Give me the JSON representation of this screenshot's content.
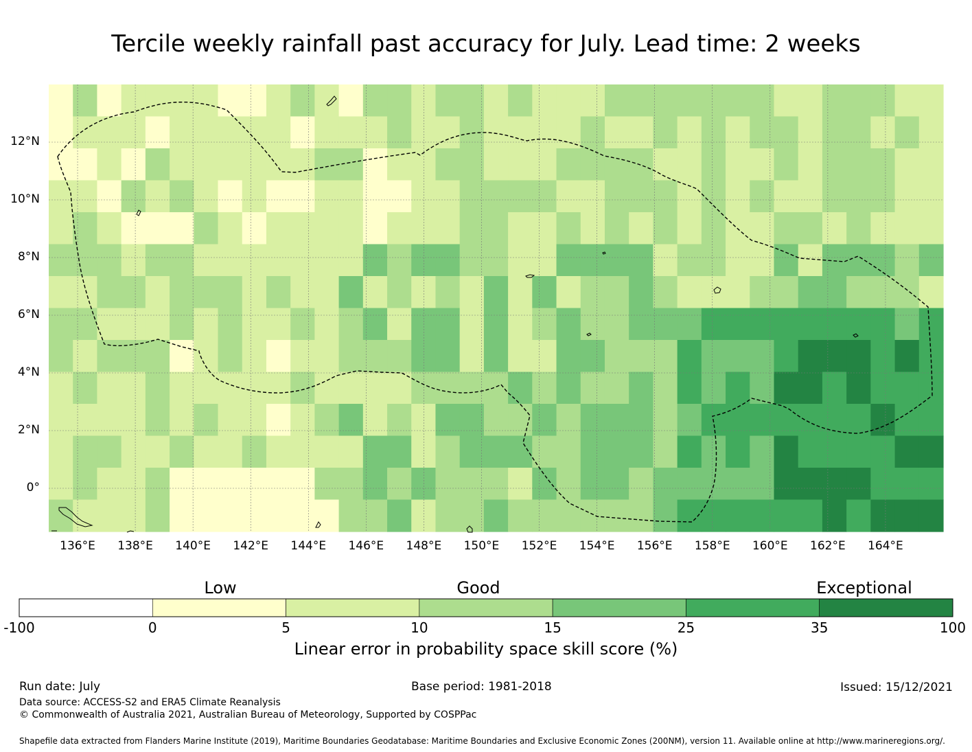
{
  "title": "Tercile weekly rainfall past accuracy for July. Lead time: 2 weeks",
  "map": {
    "lon_ticks": [
      "136°E",
      "138°E",
      "140°E",
      "142°E",
      "144°E",
      "146°E",
      "148°E",
      "150°E",
      "152°E",
      "154°E",
      "156°E",
      "158°E",
      "160°E",
      "162°E",
      "164°E"
    ],
    "lat_ticks": [
      "12°N",
      "10°N",
      "8°N",
      "6°N",
      "4°N",
      "2°N",
      "0°"
    ],
    "lon_range": [
      135,
      166
    ],
    "lat_range": [
      -1.5,
      14
    ],
    "gridlines": true,
    "boundary_style": "dashed"
  },
  "colorbar": {
    "categories": [
      "Low",
      "Good",
      "Exceptional"
    ],
    "tick_labels": [
      "-100",
      "0",
      "5",
      "10",
      "15",
      "25",
      "35",
      "100"
    ],
    "bins": [
      {
        "from": -100,
        "to": 0,
        "color": "#ffffff"
      },
      {
        "from": 0,
        "to": 5,
        "color": "#ffffcc"
      },
      {
        "from": 5,
        "to": 10,
        "color": "#d9f0a3"
      },
      {
        "from": 10,
        "to": 15,
        "color": "#addd8e"
      },
      {
        "from": 15,
        "to": 25,
        "color": "#78c679"
      },
      {
        "from": 25,
        "to": 35,
        "color": "#41ab5d"
      },
      {
        "from": 35,
        "to": 100,
        "color": "#238443"
      }
    ],
    "label": "Linear error in probability space skill score (%)"
  },
  "footer": {
    "run_date": "Run date: July",
    "base_period": "Base period: 1981-2018",
    "issued": "Issued: 15/12/2021",
    "data_source": "Data source: ACCESS-S2 and ERA5 Climate Reanalysis",
    "copyright": "© Commonwealth of Australia 2021, Australian Bureau of Meteorology, Supported by COSPPac",
    "shapefile": "Shapefile data extracted from Flanders Marine Institute (2019), Maritime Boundaries Geodatabase: Maritime Boundaries and Exclusive Economic Zones (200NM), version 11. Available online at http://www.marineregions.org/."
  }
}
